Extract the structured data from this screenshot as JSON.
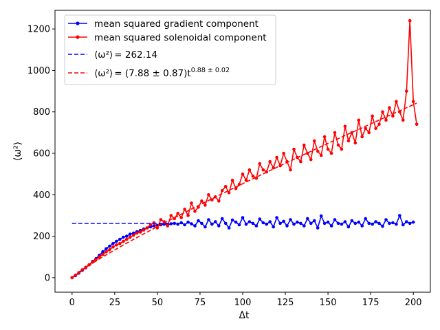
{
  "chart_data": {
    "type": "line",
    "xlabel": "Δt",
    "ylabel": "⟨ω²⟩",
    "xlim": [
      -10,
      210
    ],
    "ylim": [
      -70,
      1290
    ],
    "xticks": [
      0,
      25,
      50,
      75,
      100,
      125,
      150,
      175,
      200
    ],
    "yticks": [
      0,
      200,
      400,
      600,
      800,
      1000,
      1200
    ],
    "grid": false,
    "legend_position": "upper-left",
    "colors": {
      "gradient": "#0000ff",
      "solenoidal": "#ff0000"
    },
    "series": [
      {
        "name": "mean squared gradient component",
        "color": "#0000ff",
        "marker": "dot",
        "x": [
          0,
          2,
          4,
          6,
          8,
          10,
          12,
          14,
          16,
          18,
          20,
          22,
          24,
          26,
          28,
          30,
          32,
          34,
          36,
          38,
          40,
          42,
          44,
          46,
          48,
          50,
          52,
          54,
          56,
          58,
          60,
          62,
          64,
          66,
          68,
          70,
          72,
          74,
          76,
          78,
          80,
          82,
          84,
          86,
          88,
          90,
          92,
          94,
          96,
          98,
          100,
          102,
          104,
          106,
          108,
          110,
          112,
          114,
          116,
          118,
          120,
          122,
          124,
          126,
          128,
          130,
          132,
          134,
          136,
          138,
          140,
          142,
          144,
          146,
          148,
          150,
          152,
          154,
          156,
          158,
          160,
          162,
          164,
          166,
          168,
          170,
          172,
          174,
          176,
          178,
          180,
          182,
          184,
          186,
          188,
          190,
          192,
          194,
          196,
          198,
          200
        ],
        "y": [
          0,
          10,
          22,
          35,
          48,
          62,
          78,
          92,
          108,
          125,
          140,
          152,
          165,
          175,
          185,
          195,
          200,
          210,
          215,
          222,
          228,
          235,
          240,
          245,
          250,
          252,
          255,
          258,
          255,
          260,
          262,
          258,
          265,
          255,
          268,
          260,
          250,
          275,
          262,
          245,
          280,
          258,
          270,
          250,
          285,
          262,
          240,
          278,
          268,
          255,
          290,
          258,
          270,
          262,
          250,
          283,
          265,
          258,
          270,
          245,
          290,
          262,
          272,
          250,
          280,
          258,
          268,
          262,
          250,
          285,
          262,
          275,
          240,
          298,
          262,
          268,
          250,
          280,
          262,
          258,
          270,
          245,
          275,
          262,
          268,
          250,
          285,
          262,
          258,
          270,
          262,
          248,
          280,
          262,
          265,
          258,
          300,
          255,
          270,
          262,
          268
        ]
      },
      {
        "name": "mean squared solenoidal component",
        "color": "#ff0000",
        "marker": "dot",
        "x": [
          0,
          2,
          4,
          6,
          8,
          10,
          12,
          14,
          16,
          18,
          20,
          22,
          24,
          26,
          28,
          30,
          32,
          34,
          36,
          38,
          40,
          42,
          44,
          46,
          48,
          50,
          52,
          54,
          56,
          58,
          60,
          62,
          64,
          66,
          68,
          70,
          72,
          74,
          76,
          78,
          80,
          82,
          84,
          86,
          88,
          90,
          92,
          94,
          96,
          98,
          100,
          102,
          104,
          106,
          108,
          110,
          112,
          114,
          116,
          118,
          120,
          122,
          124,
          126,
          128,
          130,
          132,
          134,
          136,
          138,
          140,
          142,
          144,
          146,
          148,
          150,
          152,
          154,
          156,
          158,
          160,
          162,
          164,
          166,
          168,
          170,
          172,
          174,
          176,
          178,
          180,
          182,
          184,
          186,
          188,
          190,
          192,
          194,
          196,
          198,
          200,
          202
        ],
        "y": [
          0,
          12,
          25,
          38,
          50,
          62,
          75,
          88,
          100,
          112,
          125,
          135,
          148,
          158,
          165,
          175,
          185,
          195,
          205,
          215,
          220,
          230,
          240,
          255,
          265,
          240,
          280,
          270,
          250,
          300,
          285,
          310,
          290,
          330,
          300,
          360,
          320,
          340,
          370,
          350,
          400,
          375,
          390,
          370,
          420,
          440,
          410,
          470,
          430,
          450,
          500,
          470,
          520,
          490,
          480,
          550,
          520,
          510,
          560,
          530,
          580,
          540,
          600,
          560,
          520,
          620,
          580,
          560,
          640,
          600,
          570,
          660,
          610,
          590,
          680,
          620,
          600,
          700,
          640,
          620,
          730,
          660,
          700,
          650,
          760,
          680,
          720,
          700,
          780,
          720,
          740,
          800,
          760,
          820,
          780,
          850,
          800,
          760,
          900,
          1240,
          850,
          740
        ]
      },
      {
        "name": "⟨ω²⟩ = 262.14",
        "color": "#0000ff",
        "style": "dashed",
        "x": [
          0,
          60
        ],
        "y": [
          262.14,
          262.14
        ]
      },
      {
        "name": "⟨ω²⟩ = (7.88 ± 0.87)t^(0.88 ± 0.02)",
        "color": "#ff0000",
        "style": "dashed",
        "fit": {
          "a": 7.88,
          "b": 0.88
        },
        "x_range": [
          0.5,
          202
        ]
      }
    ]
  },
  "legend": {
    "gradient": "mean squared gradient component",
    "solenoidal": "mean squared solenoidal component",
    "fit_const_lhs": "⟨ω²⟩",
    "fit_const_rhs": "= 262.14",
    "fit_power_lhs": "⟨ω²⟩",
    "fit_power_mid": "= (7.88 ± 0.87)",
    "fit_power_t": "t",
    "fit_power_exp": "0.88 ± 0.02"
  }
}
